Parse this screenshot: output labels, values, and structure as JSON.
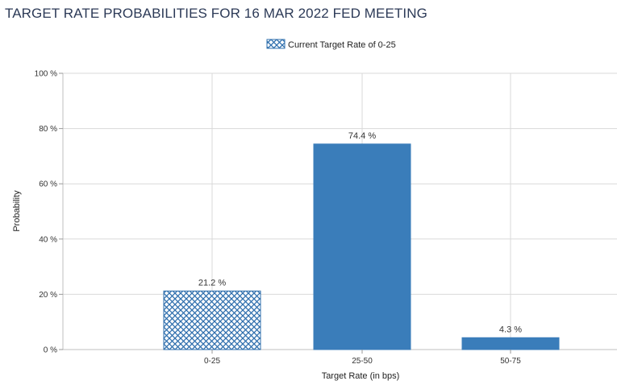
{
  "title": "TARGET RATE PROBABILITIES FOR 16 MAR 2022 FED MEETING",
  "colors": {
    "bar": "#3a7dba",
    "hatch": "#2f6fad",
    "grid": "#d9d9d9",
    "title": "#2c3a57"
  },
  "chart_data": {
    "type": "bar",
    "title": "TARGET RATE PROBABILITIES FOR 16 MAR 2022 FED MEETING",
    "xlabel": "Target Rate (in bps)",
    "ylabel": "Probability",
    "categories": [
      "0-25",
      "25-50",
      "50-75"
    ],
    "values": [
      21.2,
      74.4,
      4.3
    ],
    "value_labels": [
      "21.2 %",
      "74.4 %",
      "4.3 %"
    ],
    "highlighted_category": "0-25",
    "ylim": [
      0,
      100
    ],
    "yticks": [
      0,
      20,
      40,
      60,
      80,
      100
    ],
    "ytick_labels": [
      "0 %",
      "20 %",
      "40 %",
      "60 %",
      "80 %",
      "100 %"
    ],
    "legend": {
      "label": "Current Target Rate of 0-25",
      "position": "top-center"
    },
    "grid": true
  }
}
